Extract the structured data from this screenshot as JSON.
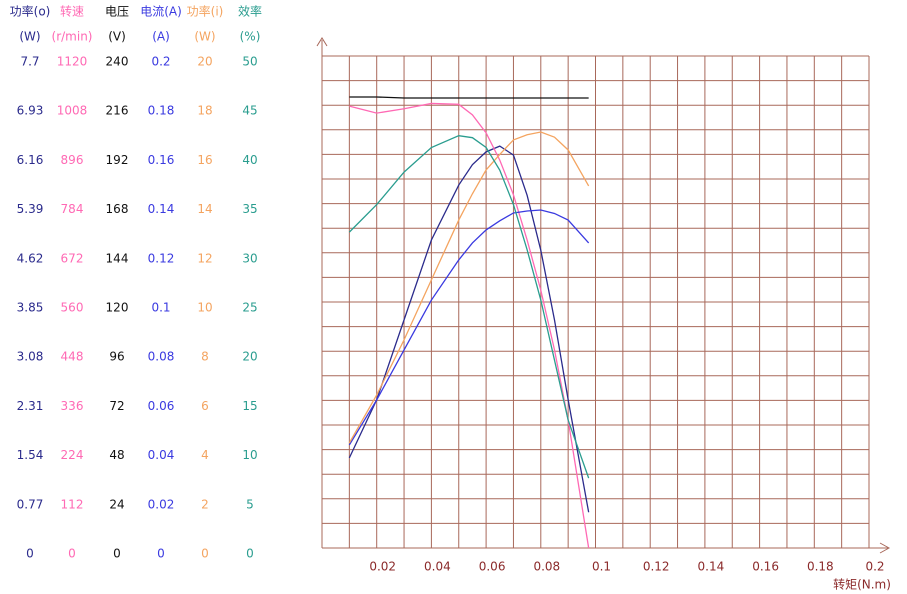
{
  "chart_data": {
    "type": "line",
    "x": [
      0.01,
      0.02,
      0.03,
      0.04,
      0.05,
      0.055,
      0.06,
      0.065,
      0.07,
      0.075,
      0.08,
      0.085,
      0.09,
      0.0975
    ],
    "xlim": [
      0,
      0.2
    ],
    "xticks": [
      0.02,
      0.04,
      0.06,
      0.08,
      0.1,
      0.12,
      0.14,
      0.16,
      0.18,
      0.2
    ],
    "x_label": "转矩(N.m)",
    "grid": true,
    "series": [
      {
        "name": "功率(o)",
        "unit": "(W)",
        "color": "#2b2b8c",
        "ylim": [
          0,
          7.7
        ],
        "yticks": [
          0,
          0.77,
          1.54,
          2.31,
          3.08,
          3.85,
          4.62,
          5.39,
          6.16,
          6.93,
          7.7
        ],
        "values": [
          1.41,
          2.32,
          3.57,
          4.82,
          5.68,
          6.0,
          6.2,
          6.29,
          6.15,
          5.52,
          4.66,
          3.57,
          2.32,
          0.56
        ]
      },
      {
        "name": "转速",
        "unit": "(r/min)",
        "color": "#ff69b4",
        "ylim": [
          0,
          1120
        ],
        "yticks": [
          0,
          112,
          224,
          336,
          448,
          560,
          672,
          784,
          896,
          1008,
          1120
        ],
        "values": [
          1006,
          990,
          1000,
          1012,
          1010,
          986,
          945,
          883,
          804,
          701,
          587,
          451,
          291,
          0
        ]
      },
      {
        "name": "电压",
        "unit": "(V)",
        "color": "#111111",
        "ylim": [
          0,
          240
        ],
        "yticks": [
          0,
          24,
          48,
          72,
          96,
          120,
          144,
          168,
          192,
          216,
          240
        ],
        "values": [
          220,
          220,
          219.5,
          219.5,
          219.5,
          219.5,
          219.5,
          219.5,
          219.5,
          219.5,
          219.5,
          219.5,
          219.5,
          219.5
        ]
      },
      {
        "name": "电流(A)",
        "unit": "(A)",
        "color": "#3a3ae0",
        "ylim": [
          0,
          0.2
        ],
        "yticks": [
          0,
          0.02,
          0.04,
          0.06,
          0.08,
          0.1,
          0.12,
          0.14,
          0.16,
          0.18,
          0.2
        ],
        "values": [
          0.0419,
          0.0602,
          0.0805,
          0.1008,
          0.1171,
          0.124,
          0.1293,
          0.133,
          0.1362,
          0.137,
          0.1374,
          0.136,
          0.1333,
          0.124
        ]
      },
      {
        "name": "功率(i)",
        "unit": "(W)",
        "color": "#f4a460",
        "ylim": [
          0,
          20
        ],
        "yticks": [
          0,
          2,
          4,
          6,
          8,
          10,
          12,
          14,
          16,
          18,
          20
        ],
        "values": [
          4.27,
          6.22,
          8.46,
          10.9,
          13.33,
          14.4,
          15.37,
          16.0,
          16.59,
          16.8,
          16.91,
          16.7,
          16.18,
          14.72
        ]
      },
      {
        "name": "效率",
        "unit": "(%)",
        "color": "#2a9d8f",
        "ylim": [
          0,
          50
        ],
        "yticks": [
          0,
          5,
          10,
          15,
          20,
          25,
          30,
          35,
          40,
          45,
          50
        ],
        "values": [
          32.1,
          34.9,
          38.2,
          40.7,
          41.9,
          41.7,
          40.7,
          38.4,
          34.9,
          30.3,
          25.2,
          19.1,
          13,
          7.1
        ]
      }
    ]
  }
}
